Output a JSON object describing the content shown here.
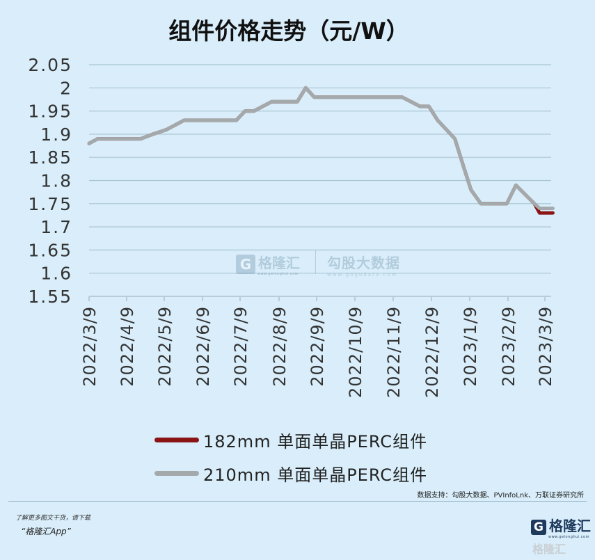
{
  "title": "组件价格走势（元/W）",
  "chart_data": {
    "type": "line",
    "title": "组件价格走势（元/W）",
    "y_ticks": [
      "2.05",
      "2",
      "1.95",
      "1.9",
      "1.85",
      "1.8",
      "1.75",
      "1.7",
      "1.65",
      "1.6",
      "1.55"
    ],
    "ylim": [
      1.55,
      2.05
    ],
    "x_ticks": [
      "2022/3/9",
      "2022/4/9",
      "2022/5/9",
      "2022/6/9",
      "2022/7/9",
      "2022/8/9",
      "2022/9/9",
      "2022/10/9",
      "2022/11/9",
      "2022/12/9",
      "2023/1/9",
      "2023/2/9",
      "2023/3/9"
    ],
    "grid": "horizontal",
    "legend_position": "bottom",
    "series": [
      {
        "name": "182mm 单面单晶PERC组件",
        "color": "#8b1414",
        "points": [
          [
            "2022-03-09",
            1.88
          ],
          [
            "2022-03-16",
            1.89
          ],
          [
            "2022-03-30",
            1.89
          ],
          [
            "2022-04-20",
            1.89
          ],
          [
            "2022-04-30",
            1.9
          ],
          [
            "2022-05-11",
            1.91
          ],
          [
            "2022-05-18",
            1.92
          ],
          [
            "2022-05-25",
            1.93
          ],
          [
            "2022-06-15",
            1.93
          ],
          [
            "2022-07-06",
            1.93
          ],
          [
            "2022-07-13",
            1.95
          ],
          [
            "2022-07-20",
            1.95
          ],
          [
            "2022-08-03",
            1.97
          ],
          [
            "2022-08-24",
            1.97
          ],
          [
            "2022-08-31",
            2.0
          ],
          [
            "2022-09-07",
            1.98
          ],
          [
            "2022-10-12",
            1.98
          ],
          [
            "2022-11-09",
            1.98
          ],
          [
            "2022-11-16",
            1.98
          ],
          [
            "2022-11-30",
            1.96
          ],
          [
            "2022-12-07",
            1.96
          ],
          [
            "2022-12-14",
            1.93
          ],
          [
            "2022-12-21",
            1.91
          ],
          [
            "2022-12-28",
            1.89
          ],
          [
            "2023-01-04",
            1.83
          ],
          [
            "2023-01-10",
            1.78
          ],
          [
            "2023-01-18",
            1.75
          ],
          [
            "2023-01-25",
            1.75
          ],
          [
            "2023-02-08",
            1.75
          ],
          [
            "2023-02-15",
            1.79
          ],
          [
            "2023-02-22",
            1.77
          ],
          [
            "2023-03-01",
            1.75
          ],
          [
            "2023-03-05",
            1.73
          ],
          [
            "2023-03-09",
            1.73
          ],
          [
            "2023-03-15",
            1.73
          ]
        ]
      },
      {
        "name": "210mm 单面单晶PERC组件",
        "color": "#a4a9ac",
        "points": [
          [
            "2022-03-09",
            1.88
          ],
          [
            "2022-03-16",
            1.89
          ],
          [
            "2022-03-30",
            1.89
          ],
          [
            "2022-04-20",
            1.89
          ],
          [
            "2022-04-30",
            1.9
          ],
          [
            "2022-05-11",
            1.91
          ],
          [
            "2022-05-18",
            1.92
          ],
          [
            "2022-05-25",
            1.93
          ],
          [
            "2022-06-15",
            1.93
          ],
          [
            "2022-07-06",
            1.93
          ],
          [
            "2022-07-13",
            1.95
          ],
          [
            "2022-07-20",
            1.95
          ],
          [
            "2022-08-03",
            1.97
          ],
          [
            "2022-08-24",
            1.97
          ],
          [
            "2022-08-31",
            2.0
          ],
          [
            "2022-09-07",
            1.98
          ],
          [
            "2022-10-12",
            1.98
          ],
          [
            "2022-11-09",
            1.98
          ],
          [
            "2022-11-16",
            1.98
          ],
          [
            "2022-11-30",
            1.96
          ],
          [
            "2022-12-07",
            1.96
          ],
          [
            "2022-12-14",
            1.93
          ],
          [
            "2022-12-21",
            1.91
          ],
          [
            "2022-12-28",
            1.89
          ],
          [
            "2023-01-04",
            1.83
          ],
          [
            "2023-01-10",
            1.78
          ],
          [
            "2023-01-18",
            1.75
          ],
          [
            "2023-01-25",
            1.75
          ],
          [
            "2023-02-08",
            1.75
          ],
          [
            "2023-02-15",
            1.79
          ],
          [
            "2023-02-22",
            1.77
          ],
          [
            "2023-03-01",
            1.75
          ],
          [
            "2023-03-05",
            1.74
          ],
          [
            "2023-03-09",
            1.74
          ],
          [
            "2023-03-15",
            1.74
          ]
        ]
      }
    ]
  },
  "legend": {
    "items": [
      {
        "label": "182mm 单面单晶PERC组件",
        "color": "#8b1414"
      },
      {
        "label": "210mm 单面单晶PERC组件",
        "color": "#a4a9ac"
      }
    ]
  },
  "watermark": {
    "logo_char": "G",
    "logo_text": "格隆汇",
    "logo_url": "www.gelonghui.com",
    "brand_name": "勾股大数据",
    "brand_url": "www.gogudata.com"
  },
  "source": "数据支持：勾股大数据、PVInfoLnk、万联证券研究所",
  "footer": {
    "line1": "了解更多图文干货，请下载",
    "line2": "“格隆汇App”",
    "logo_char": "G",
    "logo_text": "格隆汇",
    "logo_url": "www.gelonghui.com",
    "corner_watermark": "格隆汇"
  }
}
